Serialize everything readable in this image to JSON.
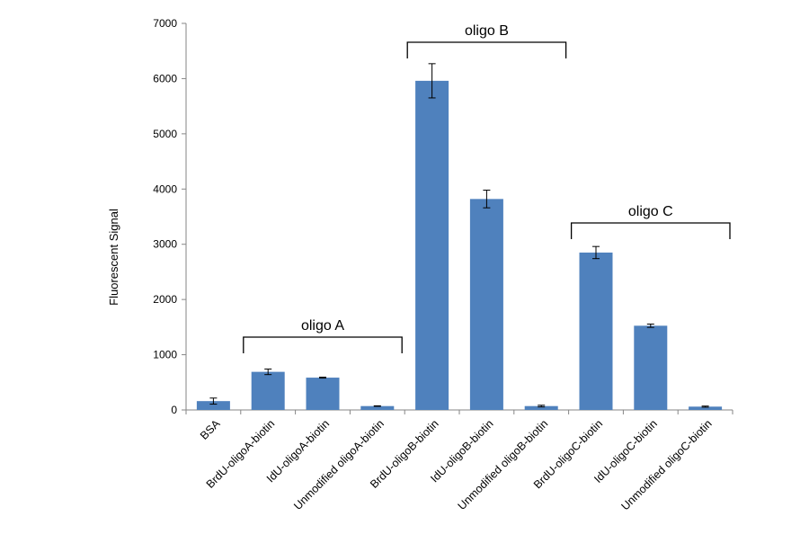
{
  "chart_data": {
    "type": "bar",
    "title": "",
    "xlabel": "",
    "ylabel": "Fluorescent  Signal",
    "ylim": [
      0,
      7000
    ],
    "yticks": [
      0,
      1000,
      2000,
      3000,
      4000,
      5000,
      6000,
      7000
    ],
    "grid": false,
    "bar_color": "#4f81bd",
    "categories": [
      "BSA",
      "BrdU-oligoA-biotin",
      "IdU-oligoA-biotin",
      "Unmodified oligoA-biotin",
      "BrdU-oligoB-biotin",
      "IdU-oligoB-biotin",
      "Unmodified oligoB-biotin",
      "BrdU-oligoC-biotin",
      "IdU-oligoC-biotin",
      "Unmodified oligoC-biotin"
    ],
    "values": [
      160,
      690,
      585,
      70,
      5960,
      3820,
      70,
      2850,
      1525,
      60
    ],
    "errors": [
      55,
      50,
      8,
      5,
      310,
      160,
      15,
      110,
      30,
      10
    ],
    "annotations": [
      {
        "text": "oligo A",
        "from_index": 1,
        "to_index": 3
      },
      {
        "text": "oligo B",
        "from_index": 4,
        "to_index": 6
      },
      {
        "text": "oligo C",
        "from_index": 7,
        "to_index": 9
      }
    ]
  }
}
